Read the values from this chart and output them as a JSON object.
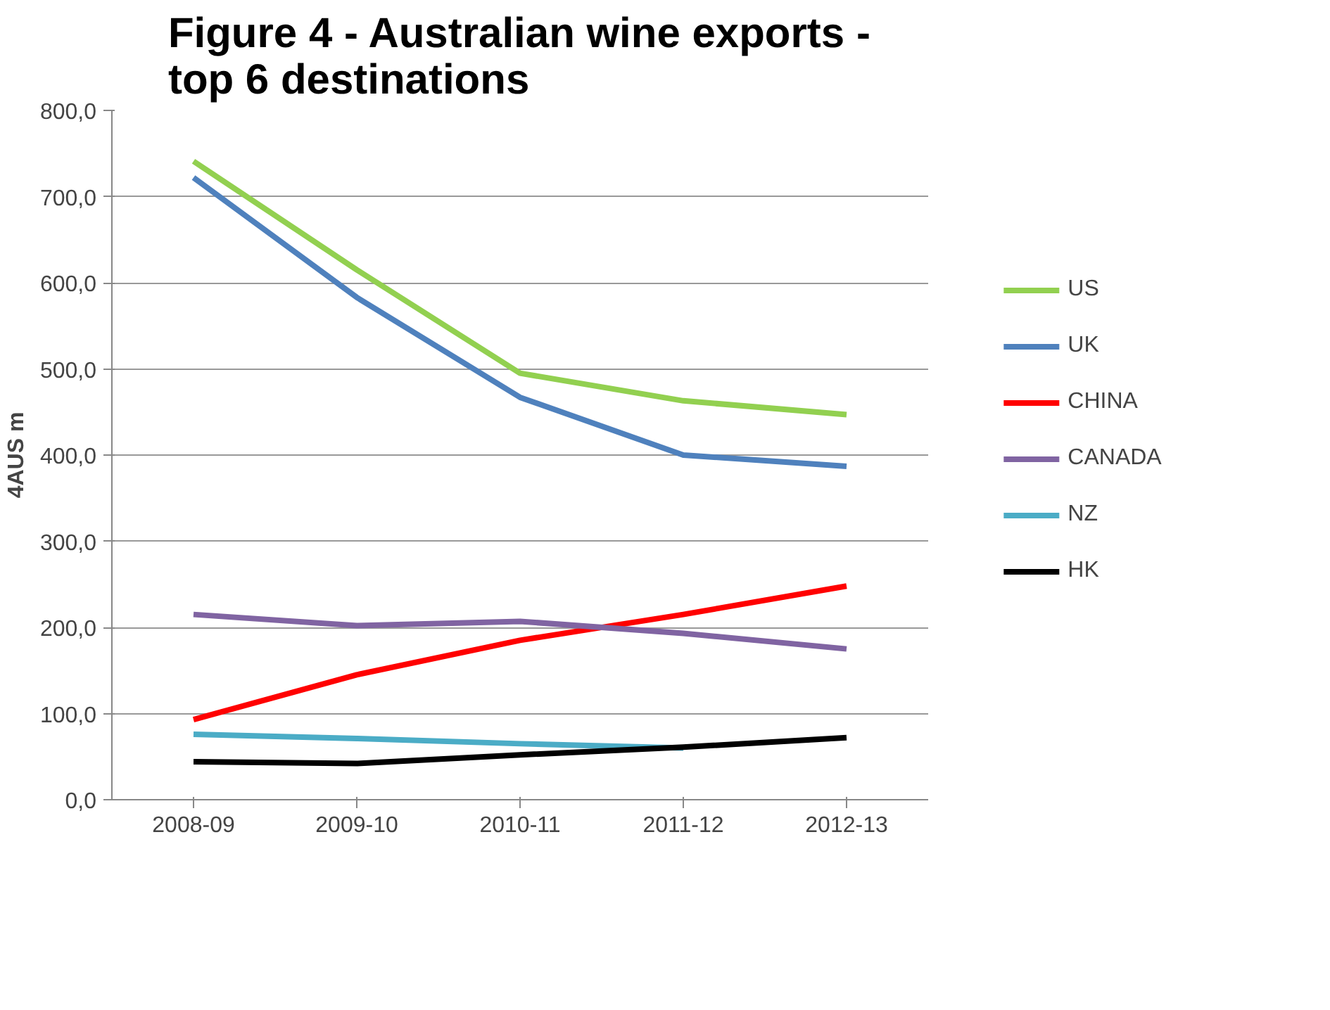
{
  "chart_data": {
    "type": "line",
    "title": "Figure 4 - Australian wine exports - top 6 destinations",
    "ylabel": "4AUS m",
    "categories": [
      "2008-09",
      "2009-10",
      "2010-11",
      "2011-12",
      "2012-13"
    ],
    "series": [
      {
        "name": "US",
        "color": "#92d050",
        "values": [
          741,
          615,
          495,
          463,
          447
        ]
      },
      {
        "name": "UK",
        "color": "#4f81bd",
        "values": [
          722,
          583,
          467,
          400,
          387
        ]
      },
      {
        "name": "CHINA",
        "color": "#ff0000",
        "values": [
          93,
          145,
          185,
          215,
          248
        ]
      },
      {
        "name": "CANADA",
        "color": "#8064a2",
        "values": [
          215,
          202,
          207,
          193,
          175
        ]
      },
      {
        "name": "NZ",
        "color": "#4bacc6",
        "values": [
          76,
          71,
          65,
          60,
          null
        ]
      },
      {
        "name": "HK",
        "color": "#000000",
        "values": [
          44,
          42,
          52,
          61,
          72
        ]
      }
    ],
    "ylim": [
      0,
      800
    ],
    "yticks": [
      {
        "value": 0,
        "label": "0,0"
      },
      {
        "value": 100,
        "label": "100,0"
      },
      {
        "value": 200,
        "label": "200,0"
      },
      {
        "value": 300,
        "label": "300,0"
      },
      {
        "value": 400,
        "label": "400,0"
      },
      {
        "value": 500,
        "label": "500,0"
      },
      {
        "value": 600,
        "label": "600,0"
      },
      {
        "value": 700,
        "label": "700,0"
      },
      {
        "value": 800,
        "label": "800,0"
      }
    ],
    "grid": "y",
    "legend": "right",
    "marker": "none",
    "line_style": "solid"
  }
}
